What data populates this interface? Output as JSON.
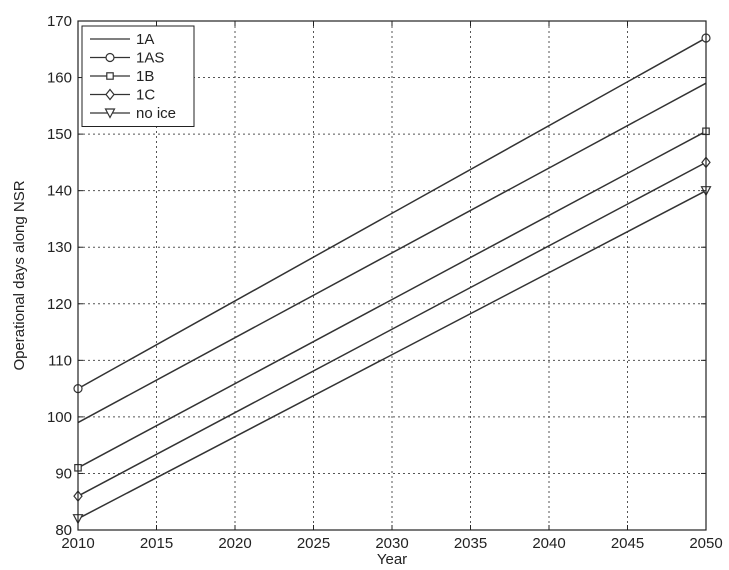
{
  "chart_data": {
    "type": "line",
    "title": "",
    "xlabel": "Year",
    "ylabel": "Operational days along NSR",
    "xlim": [
      2010,
      2050
    ],
    "ylim": [
      80,
      170
    ],
    "xticks": [
      2010,
      2015,
      2020,
      2025,
      2030,
      2035,
      2040,
      2045,
      2050
    ],
    "yticks": [
      80,
      90,
      100,
      110,
      120,
      130,
      140,
      150,
      160,
      170
    ],
    "grid": true,
    "legend_position": "top-left",
    "line_color": "#333333",
    "series": [
      {
        "name": "1A",
        "marker": "none",
        "x": [
          2010,
          2050
        ],
        "y": [
          99,
          159
        ]
      },
      {
        "name": "1AS",
        "marker": "circle",
        "x": [
          2010,
          2050
        ],
        "y": [
          105,
          167
        ]
      },
      {
        "name": "1B",
        "marker": "square",
        "x": [
          2010,
          2050
        ],
        "y": [
          91,
          150.5
        ]
      },
      {
        "name": "1C",
        "marker": "diamond",
        "x": [
          2010,
          2050
        ],
        "y": [
          86,
          145
        ]
      },
      {
        "name": "no ice",
        "marker": "triangle-down",
        "x": [
          2010,
          2050
        ],
        "y": [
          82,
          140
        ]
      }
    ]
  }
}
